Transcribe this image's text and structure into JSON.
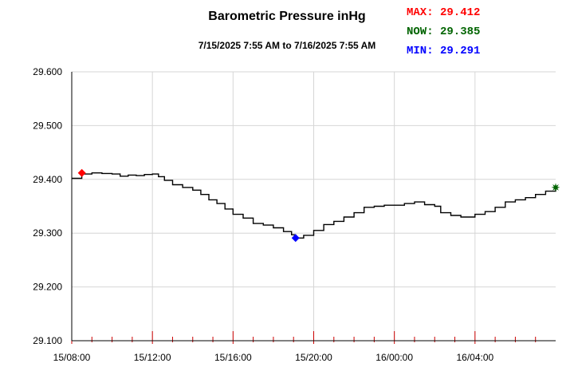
{
  "chart_data": {
    "type": "line",
    "title": "Barometric Pressure inHg",
    "subtitle": "7/15/2025 7:55 AM to 7/16/2025 7:55 AM",
    "xlabel": "",
    "ylabel": "",
    "ylim": [
      29.1,
      29.6
    ],
    "y_ticks": [
      "29.600",
      "29.500",
      "29.400",
      "29.300",
      "29.200",
      "29.100"
    ],
    "y_tick_values": [
      29.6,
      29.5,
      29.4,
      29.3,
      29.2,
      29.1
    ],
    "x_ticks": [
      "15/08:00",
      "15/12:00",
      "15/16:00",
      "15/20:00",
      "16/00:00",
      "16/04:00"
    ],
    "x_tick_values": [
      0,
      4,
      8,
      12,
      16,
      20
    ],
    "grid": true,
    "line_color": "#000000",
    "series": [
      {
        "points": [
          [
            0.0,
            29.402
          ],
          [
            0.5,
            29.41
          ],
          [
            1.0,
            29.412
          ],
          [
            1.5,
            29.411
          ],
          [
            2.0,
            29.41
          ],
          [
            2.4,
            29.406
          ],
          [
            2.8,
            29.408
          ],
          [
            3.2,
            29.407
          ],
          [
            3.6,
            29.409
          ],
          [
            4.0,
            29.41
          ],
          [
            4.3,
            29.405
          ],
          [
            4.6,
            29.398
          ],
          [
            5.0,
            29.39
          ],
          [
            5.5,
            29.385
          ],
          [
            6.0,
            29.38
          ],
          [
            6.4,
            29.372
          ],
          [
            6.8,
            29.362
          ],
          [
            7.2,
            29.355
          ],
          [
            7.6,
            29.345
          ],
          [
            8.0,
            29.335
          ],
          [
            8.5,
            29.328
          ],
          [
            9.0,
            29.318
          ],
          [
            9.5,
            29.315
          ],
          [
            10.0,
            29.31
          ],
          [
            10.5,
            29.303
          ],
          [
            10.9,
            29.297
          ],
          [
            11.1,
            29.291
          ],
          [
            11.5,
            29.296
          ],
          [
            12.0,
            29.305
          ],
          [
            12.5,
            29.316
          ],
          [
            13.0,
            29.322
          ],
          [
            13.5,
            29.33
          ],
          [
            14.0,
            29.338
          ],
          [
            14.5,
            29.348
          ],
          [
            15.0,
            29.35
          ],
          [
            15.5,
            29.352
          ],
          [
            16.0,
            29.352
          ],
          [
            16.5,
            29.355
          ],
          [
            17.0,
            29.358
          ],
          [
            17.5,
            29.353
          ],
          [
            18.0,
            29.35
          ],
          [
            18.3,
            29.338
          ],
          [
            18.8,
            29.333
          ],
          [
            19.3,
            29.33
          ],
          [
            20.0,
            29.335
          ],
          [
            20.5,
            29.34
          ],
          [
            21.0,
            29.348
          ],
          [
            21.5,
            29.358
          ],
          [
            22.0,
            29.362
          ],
          [
            22.5,
            29.366
          ],
          [
            23.0,
            29.372
          ],
          [
            23.5,
            29.378
          ],
          [
            24.0,
            29.385
          ]
        ]
      }
    ],
    "max_marker": {
      "x": 0.5,
      "value": 29.412,
      "color": "#ff0000"
    },
    "min_marker": {
      "x": 11.1,
      "value": 29.291,
      "color": "#0000ff"
    },
    "now_marker": {
      "x": 24.0,
      "value": 29.385,
      "color": "#006400"
    }
  },
  "stats": {
    "max_text": "MAX: 29.412",
    "now_text": "NOW: 29.385",
    "min_text": "MIN: 29.291",
    "max_color": "#ff0000",
    "now_color": "#006400",
    "min_color": "#0000ff"
  }
}
